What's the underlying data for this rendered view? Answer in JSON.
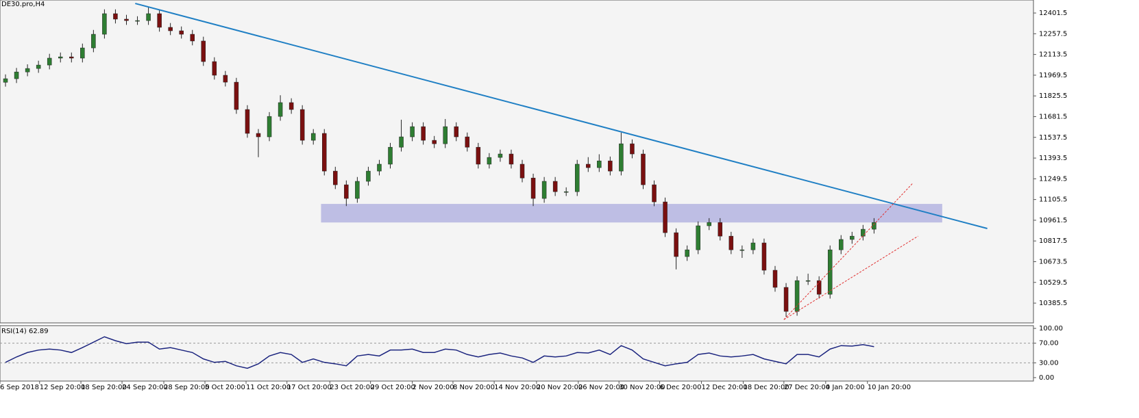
{
  "chart_data": {
    "type": "candlestick",
    "title": "DE30.pro,H4",
    "up_color": "#2e7d32",
    "down_color": "#7a1010",
    "xlim": [
      0,
      94
    ],
    "ylim": [
      10248,
      12492
    ],
    "yticks": [
      12401.5,
      12257.5,
      12113.5,
      11969.5,
      11825.5,
      11681.5,
      11537.5,
      11393.5,
      11249.5,
      11105.5,
      10961.5,
      10817.5,
      10673.5,
      10529.5,
      10385.5
    ],
    "xticks": [
      {
        "value": 0,
        "label": "6 Sep 2018"
      },
      {
        "value": 3.6,
        "label": "12 Sep 20:00"
      },
      {
        "value": 7.36,
        "label": "18 Sep 20:00"
      },
      {
        "value": 11.1,
        "label": "24 Sep 20:00"
      },
      {
        "value": 14.9,
        "label": "28 Sep 20:00"
      },
      {
        "value": 18.64,
        "label": "5 Oct 20:00"
      },
      {
        "value": 22.38,
        "label": "11 Oct 20:00"
      },
      {
        "value": 26.1,
        "label": "17 Oct 20:00"
      },
      {
        "value": 30,
        "label": "23 Oct 20:00"
      },
      {
        "value": 33.7,
        "label": "29 Oct 20:00"
      },
      {
        "value": 37.5,
        "label": "2 Nov 20:00"
      },
      {
        "value": 41.2,
        "label": "8 Nov 20:00"
      },
      {
        "value": 44.95,
        "label": "14 Nov 20:00"
      },
      {
        "value": 48.8,
        "label": "20 Nov 20:00"
      },
      {
        "value": 52.6,
        "label": "26 Nov 20:00"
      },
      {
        "value": 56.3,
        "label": "30 Nov 20:00"
      },
      {
        "value": 60,
        "label": "6 Dec 20:00"
      },
      {
        "value": 63.8,
        "label": "12 Dec 20:00"
      },
      {
        "value": 67.6,
        "label": "18 Dec 20:00"
      },
      {
        "value": 71.3,
        "label": "27 Dec 20:00"
      },
      {
        "value": 75.1,
        "label": "4 Jan 20:00"
      },
      {
        "value": 78.9,
        "label": "10 Jan 20:00"
      }
    ],
    "candles": [
      [
        11920,
        11975,
        11890,
        11945
      ],
      [
        11945,
        12020,
        11915,
        11992
      ],
      [
        11992,
        12045,
        11962,
        12016
      ],
      [
        12016,
        12070,
        11986,
        12040
      ],
      [
        12040,
        12118,
        12010,
        12088
      ],
      [
        12088,
        12127,
        12058,
        12097
      ],
      [
        12097,
        12127,
        12058,
        12088
      ],
      [
        12088,
        12189,
        12058,
        12159
      ],
      [
        12159,
        12284,
        12129,
        12254
      ],
      [
        12254,
        12427,
        12224,
        12397
      ],
      [
        12397,
        12427,
        12329,
        12359
      ],
      [
        12359,
        12389,
        12319,
        12349
      ],
      [
        12349,
        12379,
        12319,
        12349
      ],
      [
        12349,
        12440,
        12319,
        12397
      ],
      [
        12397,
        12427,
        12272,
        12302
      ],
      [
        12302,
        12332,
        12248,
        12278
      ],
      [
        12278,
        12308,
        12224,
        12254
      ],
      [
        12254,
        12284,
        12177,
        12207
      ],
      [
        12207,
        12237,
        12034,
        12064
      ],
      [
        12064,
        12094,
        11939,
        11969
      ],
      [
        11969,
        11999,
        11891,
        11921
      ],
      [
        11921,
        11951,
        11701,
        11731
      ],
      [
        11731,
        11761,
        11535,
        11565
      ],
      [
        11565,
        11595,
        11400,
        11541
      ],
      [
        11541,
        11713,
        11511,
        11683
      ],
      [
        11683,
        11830,
        11653,
        11779
      ],
      [
        11779,
        11809,
        11701,
        11731
      ],
      [
        11731,
        11761,
        11487,
        11517
      ],
      [
        11517,
        11595,
        11487,
        11565
      ],
      [
        11565,
        11595,
        11273,
        11303
      ],
      [
        11303,
        11333,
        11178,
        11208
      ],
      [
        11208,
        11238,
        11060,
        11113
      ],
      [
        11113,
        11262,
        11083,
        11232
      ],
      [
        11232,
        11333,
        11202,
        11303
      ],
      [
        11303,
        11381,
        11273,
        11351
      ],
      [
        11351,
        11499,
        11321,
        11469
      ],
      [
        11469,
        11660,
        11439,
        11541
      ],
      [
        11541,
        11642,
        11511,
        11612
      ],
      [
        11612,
        11642,
        11487,
        11517
      ],
      [
        11517,
        11547,
        11463,
        11493
      ],
      [
        11493,
        11665,
        11463,
        11612
      ],
      [
        11612,
        11642,
        11511,
        11541
      ],
      [
        11541,
        11571,
        11439,
        11469
      ],
      [
        11469,
        11499,
        11321,
        11351
      ],
      [
        11351,
        11428,
        11321,
        11398
      ],
      [
        11398,
        11452,
        11368,
        11422
      ],
      [
        11422,
        11452,
        11321,
        11351
      ],
      [
        11351,
        11381,
        11225,
        11255
      ],
      [
        11255,
        11285,
        11060,
        11113
      ],
      [
        11113,
        11262,
        11083,
        11232
      ],
      [
        11232,
        11262,
        11130,
        11160
      ],
      [
        11160,
        11190,
        11130,
        11160
      ],
      [
        11160,
        11381,
        11130,
        11351
      ],
      [
        11351,
        11400,
        11297,
        11327
      ],
      [
        11327,
        11420,
        11297,
        11374
      ],
      [
        11374,
        11404,
        11273,
        11303
      ],
      [
        11303,
        11570,
        11273,
        11493
      ],
      [
        11493,
        11523,
        11392,
        11422
      ],
      [
        11422,
        11452,
        11178,
        11208
      ],
      [
        11208,
        11238,
        11059,
        11089
      ],
      [
        11089,
        11119,
        10845,
        10875
      ],
      [
        10875,
        10905,
        10620,
        10709
      ],
      [
        10709,
        10786,
        10679,
        10756
      ],
      [
        10756,
        10953,
        10726,
        10923
      ],
      [
        10923,
        10976,
        10893,
        10946
      ],
      [
        10946,
        10976,
        10821,
        10851
      ],
      [
        10851,
        10881,
        10726,
        10756
      ],
      [
        10756,
        10786,
        10700,
        10756
      ],
      [
        10756,
        10834,
        10726,
        10804
      ],
      [
        10804,
        10834,
        10584,
        10614
      ],
      [
        10614,
        10644,
        10465,
        10495
      ],
      [
        10495,
        10525,
        10290,
        10328
      ],
      [
        10328,
        10572,
        10298,
        10542
      ],
      [
        10542,
        10590,
        10512,
        10542
      ],
      [
        10542,
        10572,
        10417,
        10447
      ],
      [
        10447,
        10786,
        10417,
        10756
      ],
      [
        10756,
        10858,
        10726,
        10828
      ],
      [
        10828,
        10881,
        10798,
        10851
      ],
      [
        10851,
        10929,
        10821,
        10899
      ],
      [
        10899,
        10976,
        10869,
        10946
      ]
    ],
    "trendline": {
      "x": [
        12.3,
        89.8
      ],
      "y": [
        12468,
        10904
      ],
      "color": "#1f7fc4"
    },
    "zone": {
      "x": [
        29.2,
        85.7
      ],
      "y": [
        10946,
        11075
      ],
      "color": "#b4b4e0"
    },
    "support_lines": {
      "color": "#e03030",
      "lines": [
        {
          "x": [
            71.3,
            83.0
          ],
          "y": [
            10271,
            11217
          ]
        },
        {
          "x": [
            71.3,
            83.5
          ],
          "y": [
            10271,
            10851
          ]
        }
      ]
    },
    "rsi": {
      "title": "RSI(14) 62.89",
      "color": "#1a237e",
      "ylim": [
        -7,
        105.6
      ],
      "yticks": [
        {
          "value": 100,
          "label": "100.00"
        },
        {
          "value": 70,
          "label": "70.00"
        },
        {
          "value": 30,
          "label": "30.00"
        },
        {
          "value": 0,
          "label": "0.00"
        }
      ],
      "levels": [
        70,
        30
      ],
      "values": [
        31,
        42,
        51,
        56,
        58,
        56,
        51,
        61,
        72,
        83,
        75,
        69,
        72,
        72,
        58,
        61,
        56,
        51,
        38,
        31,
        33,
        24,
        19,
        28,
        44,
        51,
        47,
        31,
        38,
        31,
        28,
        24,
        44,
        47,
        44,
        56,
        56,
        58,
        51,
        51,
        58,
        56,
        47,
        42,
        47,
        50,
        44,
        40,
        31,
        44,
        42,
        44,
        51,
        50,
        56,
        47,
        65,
        56,
        38,
        31,
        24,
        28,
        31,
        47,
        50,
        44,
        42,
        44,
        47,
        38,
        33,
        28,
        47,
        47,
        42,
        58,
        65,
        64,
        67,
        62.89
      ]
    }
  }
}
